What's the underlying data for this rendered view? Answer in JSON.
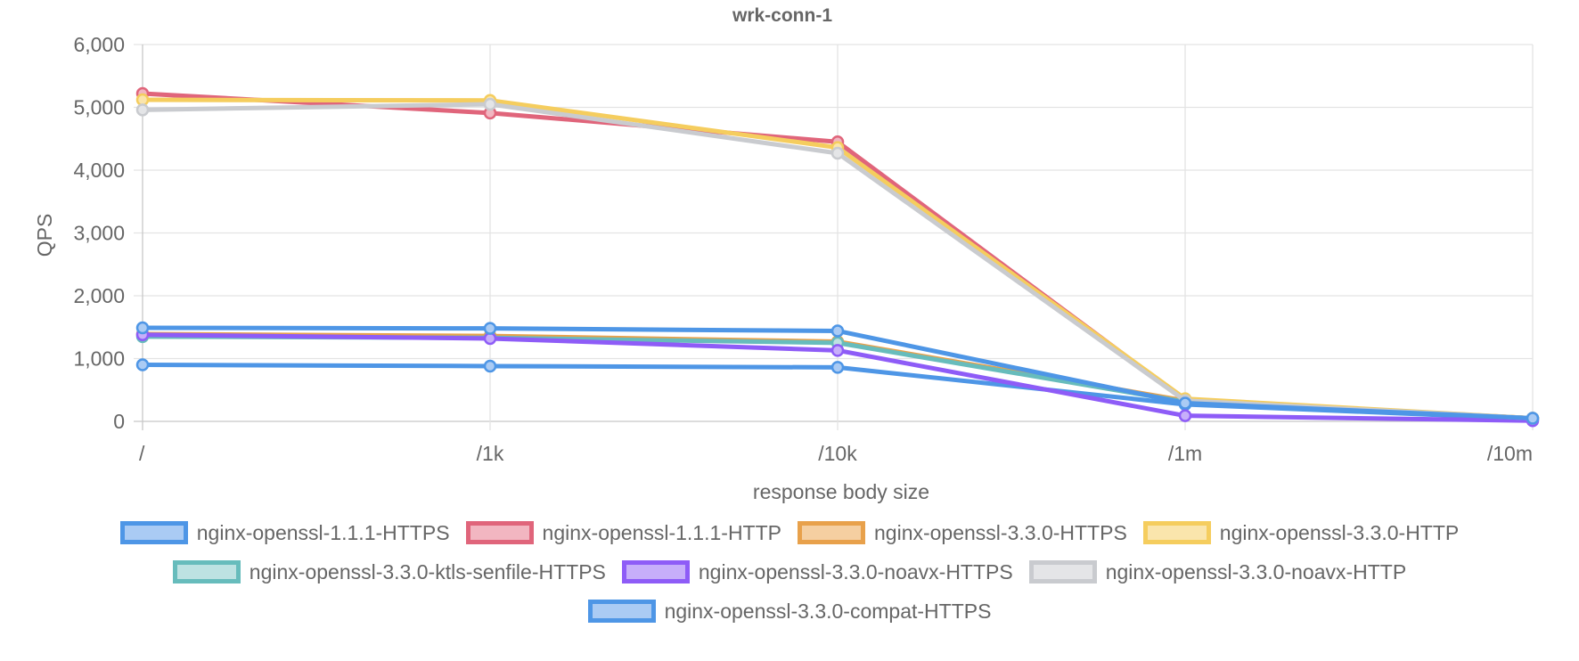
{
  "chart_data": {
    "type": "line",
    "title": "wrk-conn-1",
    "xlabel": "response body size",
    "ylabel": "QPS",
    "ylim": [
      0,
      6000
    ],
    "yticks": [
      0,
      1000,
      2000,
      3000,
      4000,
      5000,
      6000
    ],
    "ytick_labels": [
      "0",
      "1,000",
      "2,000",
      "3,000",
      "4,000",
      "5,000",
      "6,000"
    ],
    "grid": true,
    "legend_position": "bottom",
    "categories": [
      "/",
      "/1k",
      "/10k",
      "/1m",
      "/10m"
    ],
    "series": [
      {
        "name": "nginx-openssl-1.1.1-HTTPS",
        "color": "#4e96e6",
        "fill": "#aacbf4",
        "values": [
          900,
          880,
          860,
          270,
          40
        ]
      },
      {
        "name": "nginx-openssl-1.1.1-HTTP",
        "color": "#e0657b",
        "fill": "#f2b6c1",
        "values": [
          5220,
          4910,
          4450,
          340,
          50
        ]
      },
      {
        "name": "nginx-openssl-3.3.0-HTTPS",
        "color": "#e8a14b",
        "fill": "#f5cfa1",
        "values": [
          1390,
          1360,
          1270,
          330,
          50
        ]
      },
      {
        "name": "nginx-openssl-3.3.0-HTTP",
        "color": "#f5cd5e",
        "fill": "#fae5ac",
        "values": [
          5120,
          5110,
          4360,
          360,
          50
        ]
      },
      {
        "name": "nginx-openssl-3.3.0-ktls-senfile-HTTPS",
        "color": "#67bcbc",
        "fill": "#bde2e2",
        "values": [
          1350,
          1330,
          1250,
          310,
          50
        ]
      },
      {
        "name": "nginx-openssl-3.3.0-noavx-HTTPS",
        "color": "#8e5cf7",
        "fill": "#c7aefa",
        "values": [
          1380,
          1320,
          1130,
          90,
          10
        ]
      },
      {
        "name": "nginx-openssl-3.3.0-noavx-HTTP",
        "color": "#c9cbcf",
        "fill": "#e4e5e7",
        "values": [
          4960,
          5050,
          4270,
          330,
          50
        ]
      },
      {
        "name": "nginx-openssl-3.3.0-compat-HTTPS",
        "color": "#4e96e6",
        "fill": "#aacbf4",
        "values": [
          1490,
          1480,
          1440,
          290,
          50
        ]
      }
    ]
  }
}
